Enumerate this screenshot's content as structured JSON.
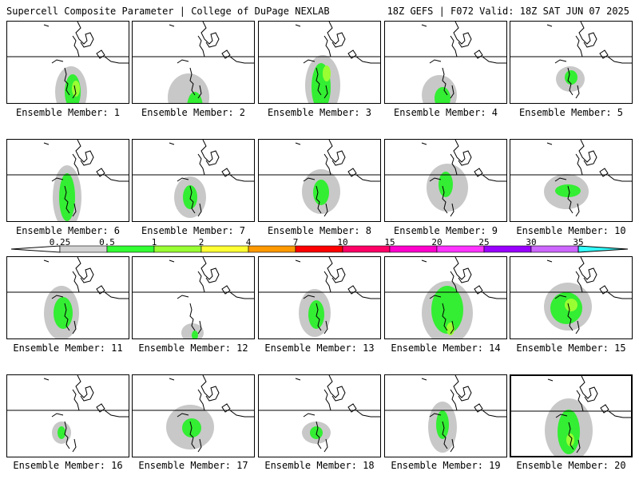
{
  "header": {
    "title": "Supercell Composite Parameter | College of DuPage NEXLAB",
    "run_info": "18Z GEFS | F072 Valid: 18Z SAT JUN 07 2025"
  },
  "colorbar": {
    "labels": [
      "0.25",
      "0.5",
      "1",
      "2",
      "4",
      "7",
      "10",
      "15",
      "20",
      "25",
      "30",
      "35"
    ],
    "colors": [
      "#d3d3d3",
      "#33ff33",
      "#99ff33",
      "#ffff33",
      "#ff9900",
      "#ff0000",
      "#ff0066",
      "#ff00cc",
      "#ff33ff",
      "#9900ff",
      "#cc66ff",
      "#33ffff"
    ]
  },
  "map_colors": {
    "light_gray": "#c8c8c8",
    "green": "#33ee33",
    "lime": "#99ff33",
    "yellow": "#ffff33"
  },
  "members": [
    {
      "label": "Ensemble Member: 1"
    },
    {
      "label": "Ensemble Member: 2"
    },
    {
      "label": "Ensemble Member: 3"
    },
    {
      "label": "Ensemble Member: 4"
    },
    {
      "label": "Ensemble Member: 5"
    },
    {
      "label": "Ensemble Member: 6"
    },
    {
      "label": "Ensemble Member: 7"
    },
    {
      "label": "Ensemble Member: 8"
    },
    {
      "label": "Ensemble Member: 9"
    },
    {
      "label": "Ensemble Member: 10"
    },
    {
      "label": "Ensemble Member: 11"
    },
    {
      "label": "Ensemble Member: 12"
    },
    {
      "label": "Ensemble Member: 13"
    },
    {
      "label": "Ensemble Member: 14"
    },
    {
      "label": "Ensemble Member: 15"
    },
    {
      "label": "Ensemble Member: 16"
    },
    {
      "label": "Ensemble Member: 17"
    },
    {
      "label": "Ensemble Member: 18"
    },
    {
      "label": "Ensemble Member: 19"
    },
    {
      "label": "Ensemble Member: 20"
    }
  ]
}
